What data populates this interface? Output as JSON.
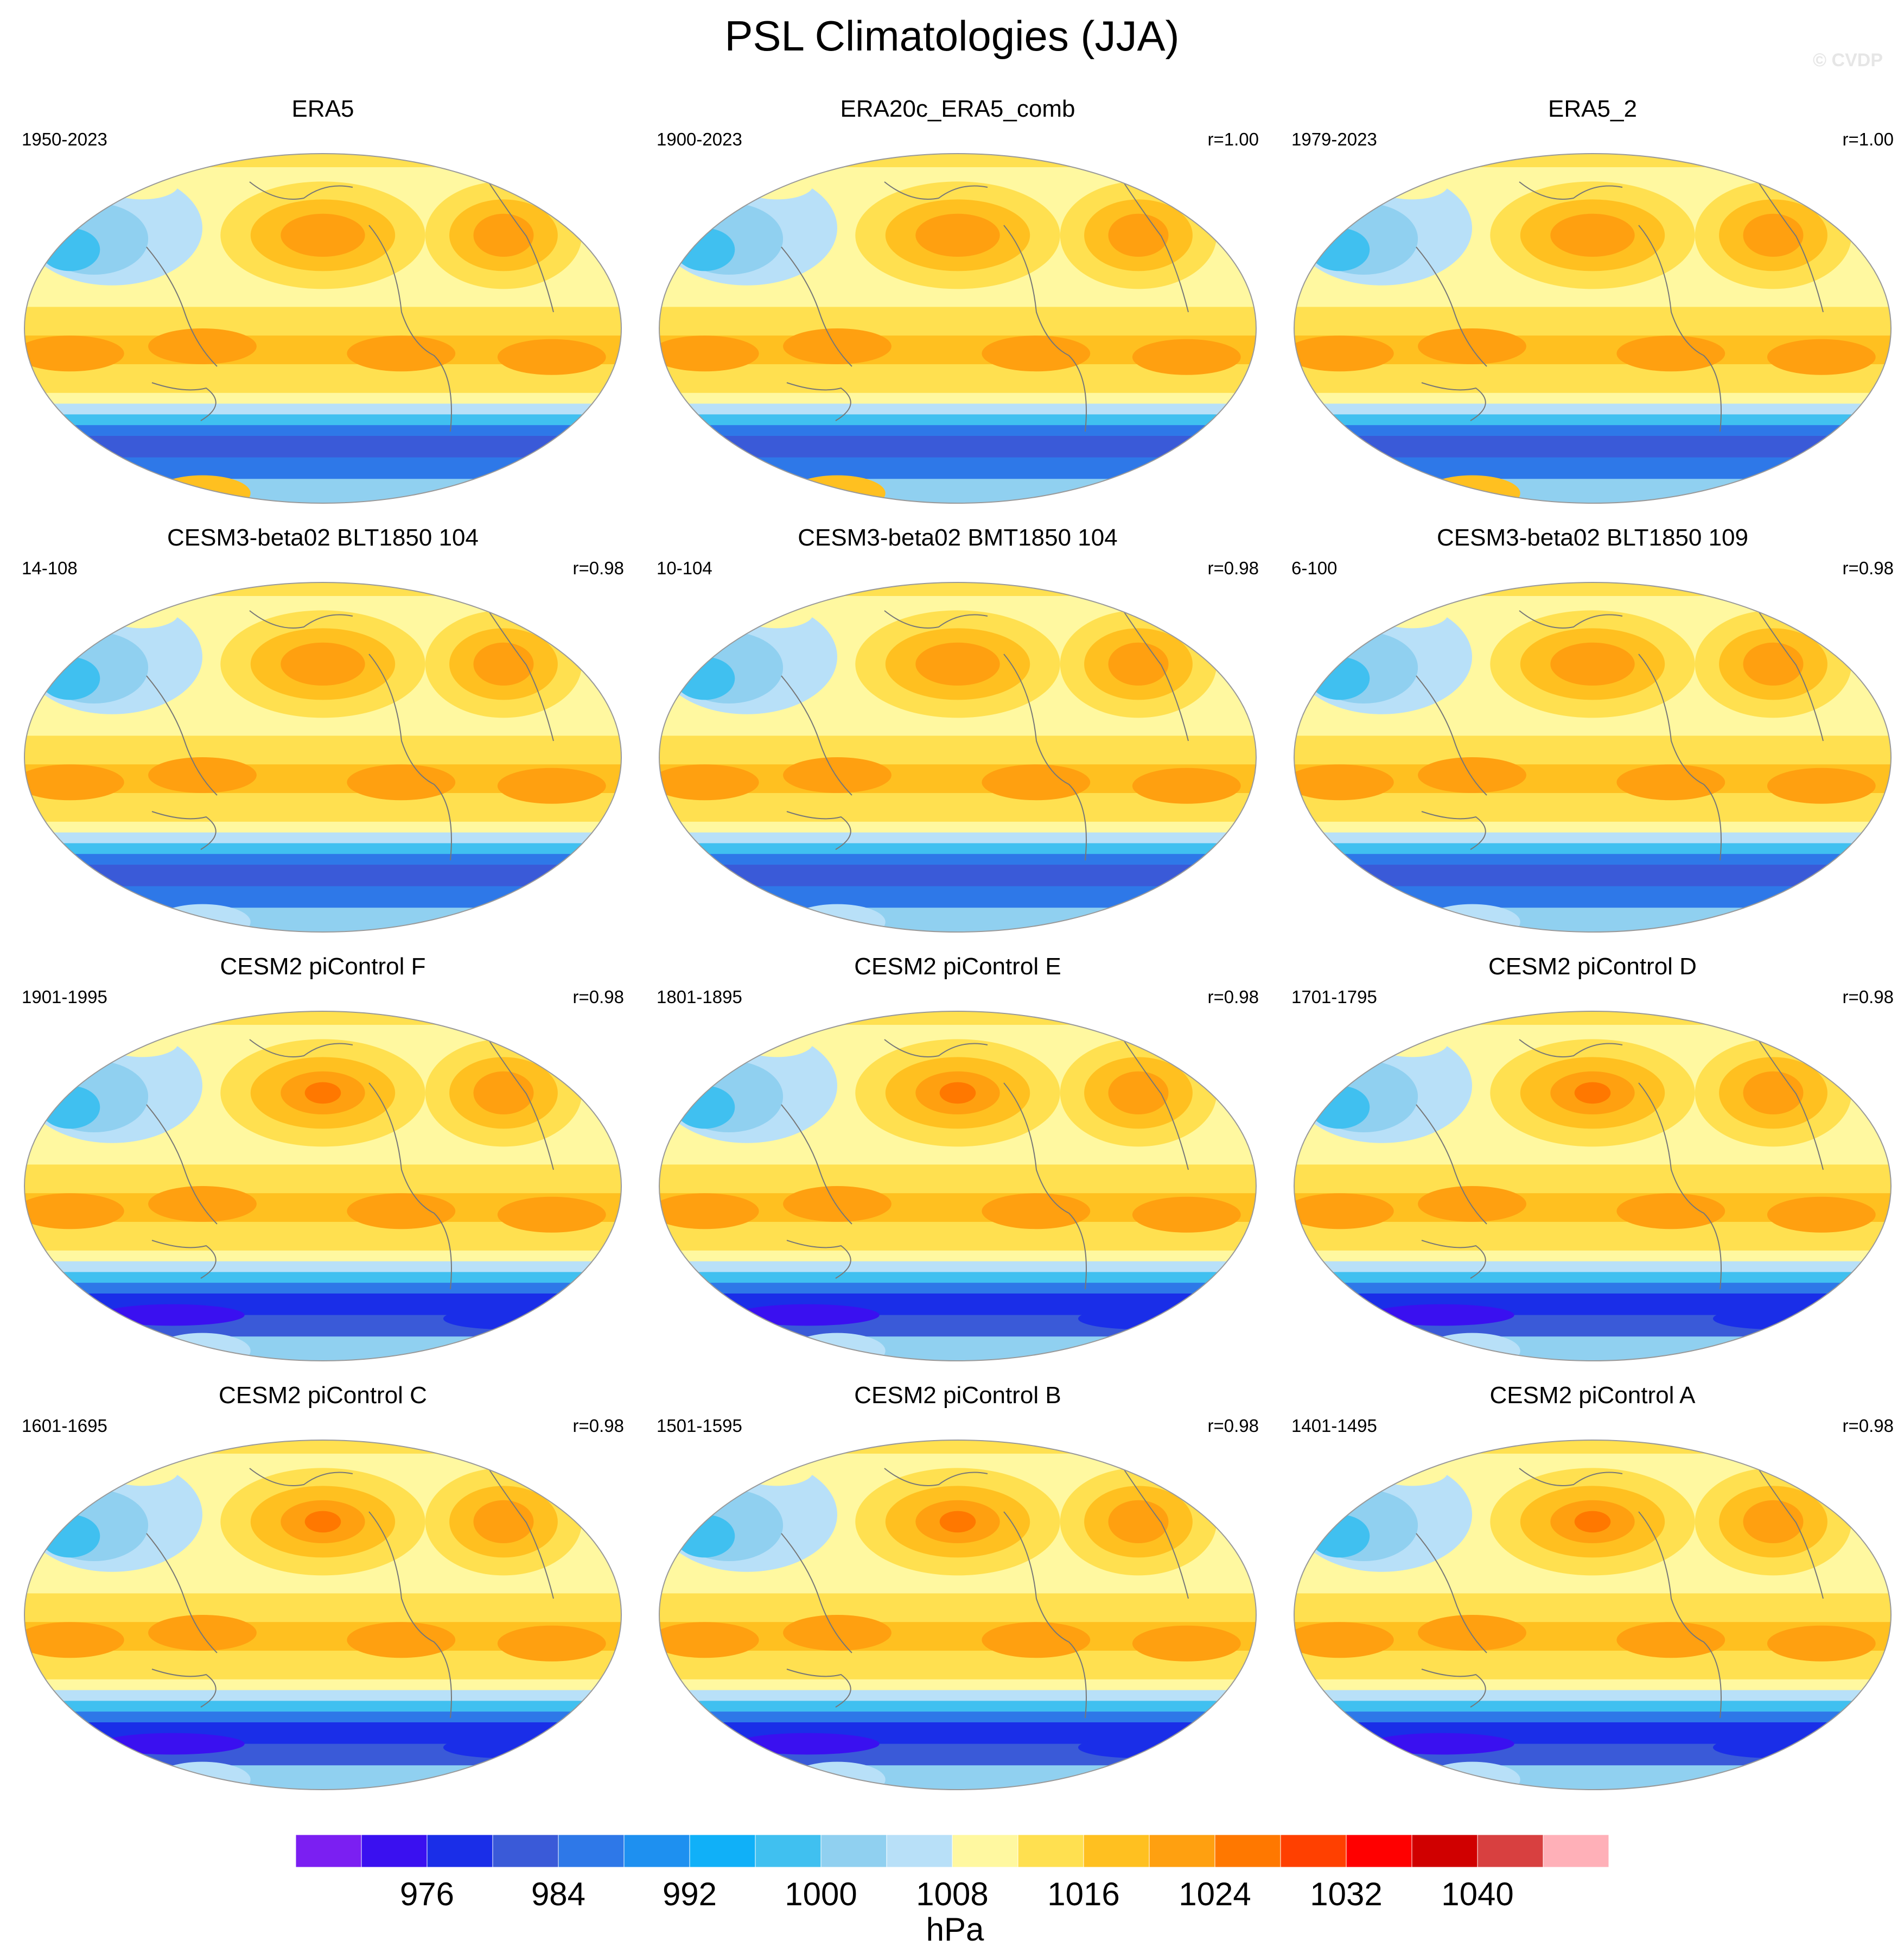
{
  "figure": {
    "title": "PSL Climatologies (JJA)",
    "watermark": "© CVDP"
  },
  "colors": {
    "coastline": "#777777",
    "map_outline": "#999999"
  },
  "panels": [
    {
      "title": "ERA5",
      "years": "1950-2023",
      "r": ""
    },
    {
      "title": "ERA20c_ERA5_comb",
      "years": "1900-2023",
      "r": "r=1.00"
    },
    {
      "title": "ERA5_2",
      "years": "1979-2023",
      "r": "r=1.00"
    },
    {
      "title": "CESM3-beta02 BLT1850 104",
      "years": "14-108",
      "r": "r=0.98"
    },
    {
      "title": "CESM3-beta02 BMT1850 104",
      "years": "10-104",
      "r": "r=0.98"
    },
    {
      "title": "CESM3-beta02 BLT1850 109",
      "years": "6-100",
      "r": "r=0.98"
    },
    {
      "title": "CESM2 piControl F",
      "years": "1901-1995",
      "r": "r=0.98"
    },
    {
      "title": "CESM2 piControl E",
      "years": "1801-1895",
      "r": "r=0.98"
    },
    {
      "title": "CESM2 piControl D",
      "years": "1701-1795",
      "r": "r=0.98"
    },
    {
      "title": "CESM2 piControl C",
      "years": "1601-1695",
      "r": "r=0.98"
    },
    {
      "title": "CESM2 piControl B",
      "years": "1501-1595",
      "r": "r=0.98"
    },
    {
      "title": "CESM2 piControl A",
      "years": "1401-1495",
      "r": "r=0.98"
    }
  ],
  "colorbar": {
    "units": "hPa",
    "labels": [
      "976",
      "984",
      "992",
      "1000",
      "1008",
      "1016",
      "1024",
      "1032",
      "1040"
    ],
    "colors": [
      "#7b1ff2",
      "#3a10f0",
      "#1a2ee8",
      "#3a5ad8",
      "#2e78e8",
      "#1e90f0",
      "#10b0f8",
      "#40c0f0",
      "#90d0f0",
      "#b8e0f8",
      "#fff8a0",
      "#ffe050",
      "#ffc020",
      "#ffa010",
      "#ff7800",
      "#ff4000",
      "#ff0000",
      "#d00000",
      "#d84040",
      "#ffb0b8"
    ]
  }
}
